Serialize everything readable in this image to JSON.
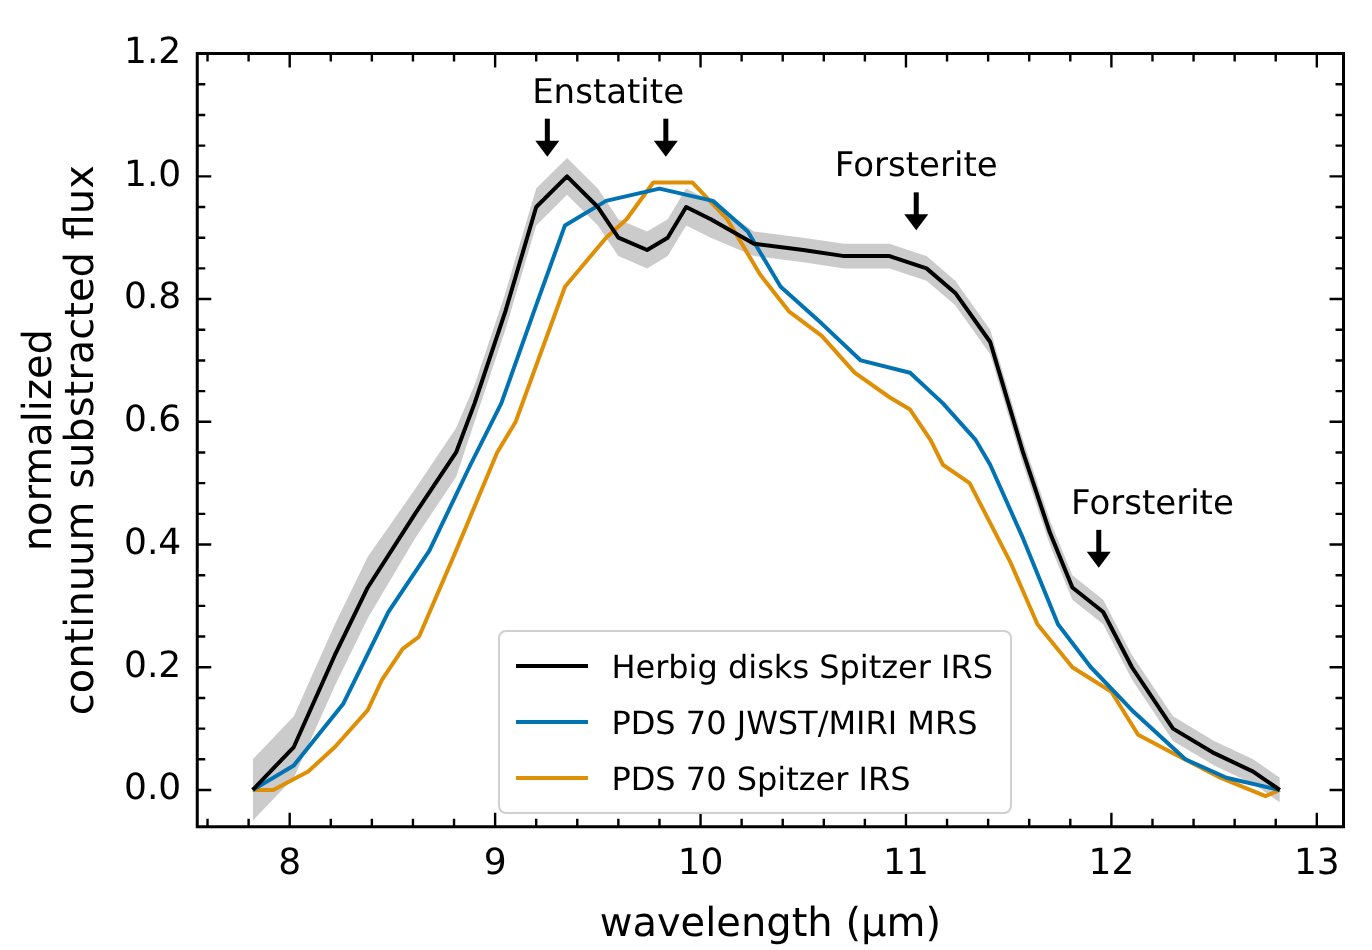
{
  "chart_data": {
    "type": "line",
    "xlabel": "wavelength (μm)",
    "ylabel": "normalized\ncontinuum substracted flux",
    "xlim": [
      7.55,
      13.13
    ],
    "ylim": [
      -0.06,
      1.2
    ],
    "xticks": [
      {
        "value": 7.6,
        "label": null
      },
      {
        "value": 7.8,
        "label": null
      },
      8,
      {
        "value": 8.2,
        "label": null
      },
      {
        "value": 8.4,
        "label": null
      },
      {
        "value": 8.6,
        "label": null
      },
      {
        "value": 8.8,
        "label": null
      },
      9,
      {
        "value": 9.2,
        "label": null
      },
      {
        "value": 9.4,
        "label": null
      },
      {
        "value": 9.6,
        "label": null
      },
      {
        "value": 9.8,
        "label": null
      },
      10,
      {
        "value": 10.2,
        "label": null
      },
      {
        "value": 10.4,
        "label": null
      },
      {
        "value": 10.6,
        "label": null
      },
      {
        "value": 10.8,
        "label": null
      },
      11,
      {
        "value": 11.2,
        "label": null
      },
      {
        "value": 11.4,
        "label": null
      },
      {
        "value": 11.6,
        "label": null
      },
      {
        "value": 11.8,
        "label": null
      },
      12,
      {
        "value": 12.2,
        "label": null
      },
      {
        "value": 12.4,
        "label": null
      },
      {
        "value": 12.6,
        "label": null
      },
      {
        "value": 12.8,
        "label": null
      },
      13
    ],
    "yticks": [
      {
        "value": 0,
        "label": "0.0"
      },
      {
        "value": 0.05,
        "label": null
      },
      {
        "value": 0.1,
        "label": null
      },
      {
        "value": 0.15,
        "label": null
      },
      {
        "value": 0.2,
        "label": "0.2"
      },
      {
        "value": 0.25,
        "label": null
      },
      {
        "value": 0.3,
        "label": null
      },
      {
        "value": 0.35,
        "label": null
      },
      {
        "value": 0.4,
        "label": "0.4"
      },
      {
        "value": 0.45,
        "label": null
      },
      {
        "value": 0.5,
        "label": null
      },
      {
        "value": 0.55,
        "label": null
      },
      {
        "value": 0.6,
        "label": "0.6"
      },
      {
        "value": 0.65,
        "label": null
      },
      {
        "value": 0.7,
        "label": null
      },
      {
        "value": 0.75,
        "label": null
      },
      {
        "value": 0.8,
        "label": "0.8"
      },
      {
        "value": 0.85,
        "label": null
      },
      {
        "value": 0.9,
        "label": null
      },
      {
        "value": 0.95,
        "label": null
      },
      {
        "value": 1.0,
        "label": "1.0"
      },
      {
        "value": 1.05,
        "label": null
      },
      {
        "value": 1.1,
        "label": null
      },
      {
        "value": 1.15,
        "label": null
      },
      {
        "value": 1.2,
        "label": "1.2"
      }
    ],
    "grid": false,
    "legend": "bottom",
    "line_style": "solid",
    "annotations": [
      "Enstatite",
      "Forsterite",
      "Forsterite"
    ],
    "series": [
      {
        "name": "Herbig disks Spitzer IRS",
        "color": "#000000",
        "x": [
          7.82,
          8.02,
          8.22,
          8.38,
          8.61,
          8.81,
          8.9,
          9.05,
          9.2,
          9.35,
          9.5,
          9.6,
          9.74,
          9.84,
          9.93,
          10.05,
          10.26,
          10.5,
          10.7,
          10.92,
          11.1,
          11.24,
          11.41,
          11.57,
          11.7,
          11.81,
          11.96,
          12.1,
          12.3,
          12.5,
          12.69,
          12.82
        ],
        "values": [
          0.0,
          0.07,
          0.22,
          0.33,
          0.45,
          0.55,
          0.63,
          0.78,
          0.95,
          1.0,
          0.95,
          0.9,
          0.88,
          0.9,
          0.95,
          0.93,
          0.89,
          0.88,
          0.87,
          0.87,
          0.85,
          0.81,
          0.73,
          0.55,
          0.42,
          0.33,
          0.29,
          0.2,
          0.1,
          0.06,
          0.03,
          0.0
        ],
        "lower": [
          -0.05,
          0.02,
          0.17,
          0.28,
          0.41,
          0.51,
          0.6,
          0.75,
          0.92,
          0.97,
          0.92,
          0.87,
          0.85,
          0.87,
          0.92,
          0.9,
          0.87,
          0.86,
          0.85,
          0.85,
          0.83,
          0.79,
          0.71,
          0.53,
          0.4,
          0.31,
          0.27,
          0.18,
          0.08,
          0.04,
          0.01,
          -0.02
        ],
        "upper": [
          0.05,
          0.12,
          0.27,
          0.38,
          0.49,
          0.59,
          0.66,
          0.81,
          0.98,
          1.03,
          0.98,
          0.93,
          0.91,
          0.93,
          0.98,
          0.96,
          0.91,
          0.9,
          0.89,
          0.89,
          0.87,
          0.83,
          0.75,
          0.57,
          0.44,
          0.35,
          0.31,
          0.22,
          0.12,
          0.08,
          0.05,
          0.02
        ]
      },
      {
        "name": "PDS 70 JWST/MIRI MRS",
        "color": "#0173b2",
        "x": [
          7.82,
          8.02,
          8.26,
          8.48,
          8.68,
          8.88,
          9.03,
          9.2,
          9.34,
          9.54,
          9.8,
          10.06,
          10.23,
          10.39,
          10.59,
          10.78,
          11.02,
          11.18,
          11.34,
          11.41,
          11.57,
          11.74,
          11.9,
          12.1,
          12.36,
          12.56,
          12.82
        ],
        "values": [
          0.0,
          0.04,
          0.14,
          0.29,
          0.39,
          0.53,
          0.63,
          0.79,
          0.92,
          0.96,
          0.98,
          0.96,
          0.91,
          0.82,
          0.76,
          0.7,
          0.68,
          0.63,
          0.57,
          0.53,
          0.41,
          0.27,
          0.2,
          0.13,
          0.05,
          0.02,
          0.0
        ]
      },
      {
        "name": "PDS 70 Spitzer IRS",
        "color": "#de8f05",
        "x": [
          7.82,
          7.92,
          8.09,
          8.22,
          8.38,
          8.45,
          8.55,
          8.63,
          8.81,
          9.01,
          9.1,
          9.34,
          9.54,
          9.64,
          9.77,
          9.96,
          10.13,
          10.29,
          10.43,
          10.59,
          10.75,
          10.92,
          11.02,
          11.12,
          11.18,
          11.31,
          11.51,
          11.64,
          11.81,
          12.0,
          12.13,
          12.3,
          12.53,
          12.75,
          12.82
        ],
        "values": [
          0.0,
          0.0,
          0.03,
          0.07,
          0.13,
          0.18,
          0.23,
          0.25,
          0.39,
          0.55,
          0.6,
          0.82,
          0.9,
          0.93,
          0.99,
          0.99,
          0.93,
          0.84,
          0.78,
          0.74,
          0.68,
          0.64,
          0.62,
          0.57,
          0.53,
          0.5,
          0.37,
          0.27,
          0.2,
          0.16,
          0.09,
          0.06,
          0.02,
          -0.01,
          0.0
        ]
      }
    ]
  }
}
